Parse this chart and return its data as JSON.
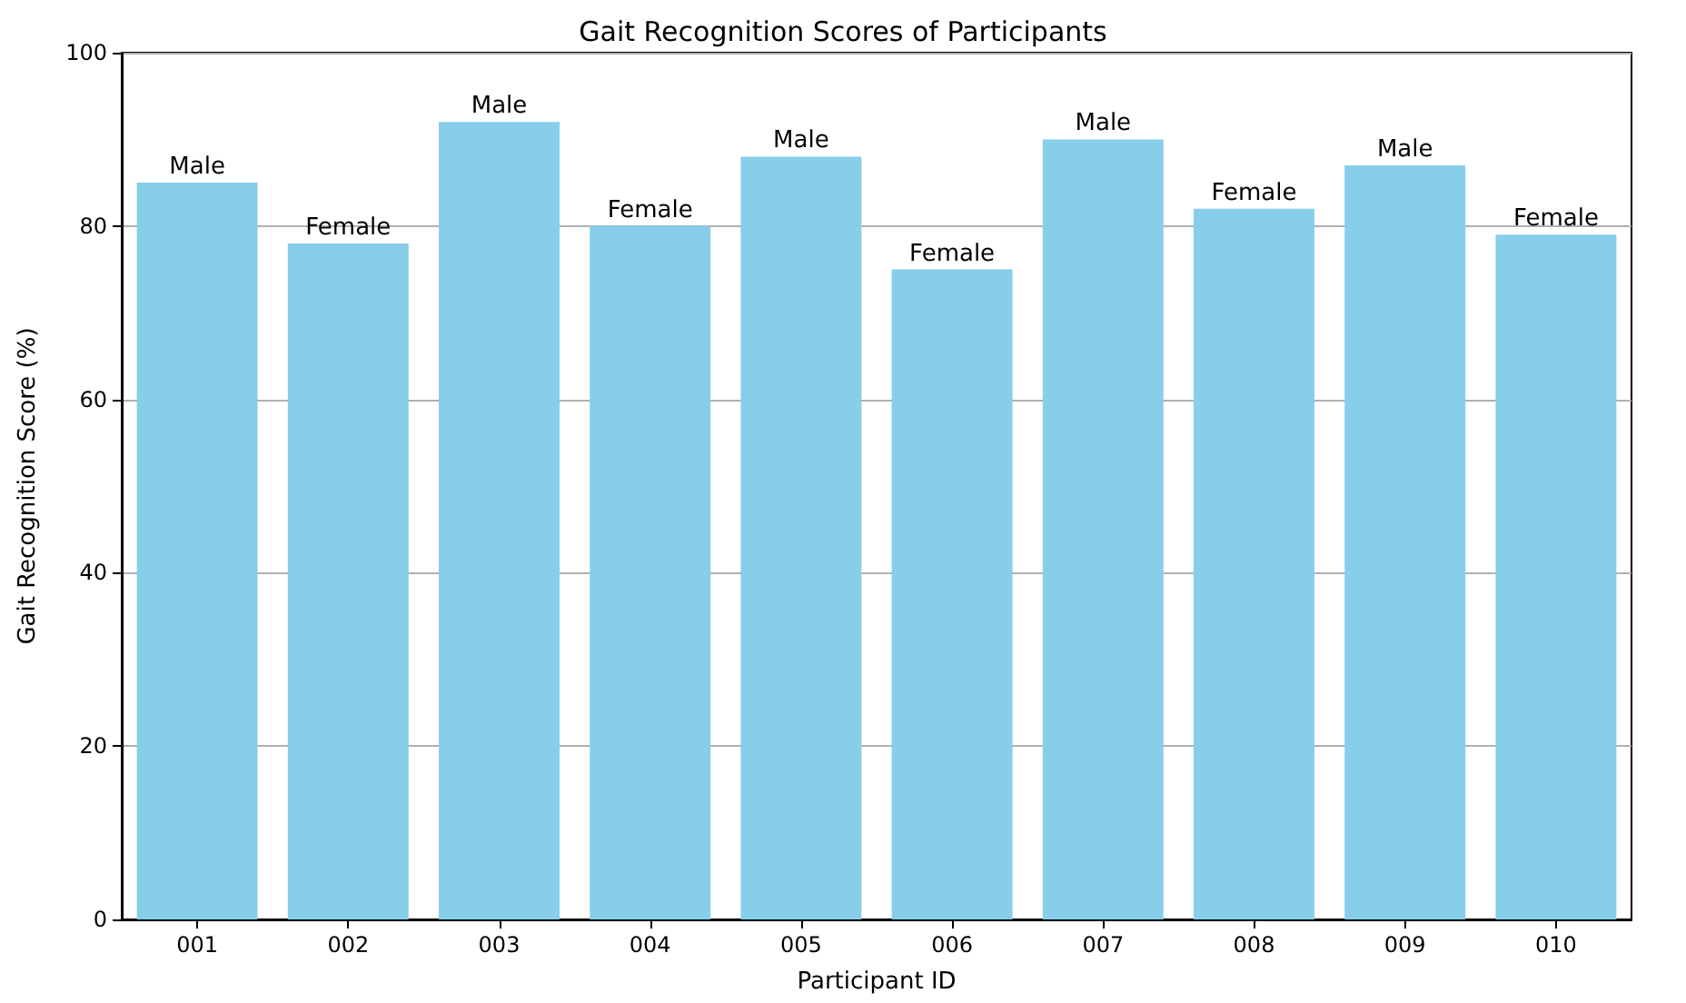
{
  "chart_data": {
    "type": "bar",
    "title": "Gait Recognition Scores of Participants",
    "xlabel": "Participant ID",
    "ylabel": "Gait Recognition Score (%)",
    "categories": [
      "001",
      "002",
      "003",
      "004",
      "005",
      "006",
      "007",
      "008",
      "009",
      "010"
    ],
    "values": [
      85,
      78,
      92,
      80,
      88,
      75,
      90,
      82,
      87,
      79
    ],
    "value_labels": [
      "Male",
      "Female",
      "Male",
      "Female",
      "Male",
      "Female",
      "Male",
      "Female",
      "Male",
      "Female"
    ],
    "color": "#87ceeb",
    "ylim": [
      0,
      100
    ],
    "yticks": [
      0,
      20,
      40,
      60,
      80,
      100
    ],
    "grid": "y"
  }
}
